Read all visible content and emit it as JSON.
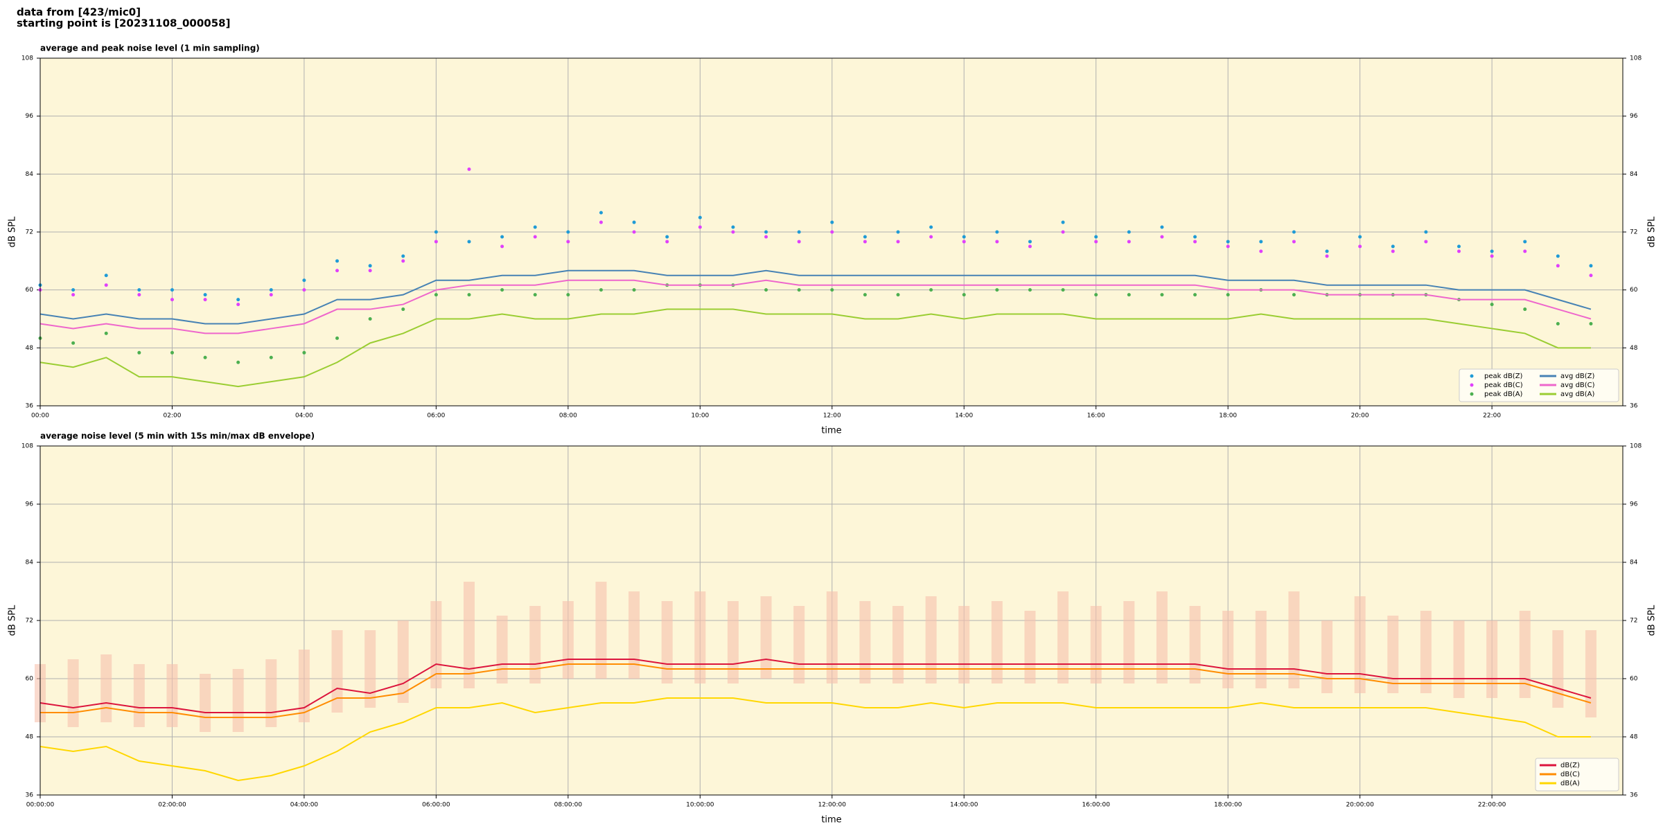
{
  "header": {
    "line1": "data from [423/mic0]",
    "line2": "starting point is [20231108_000058]"
  },
  "chart_data": [
    {
      "type": "line",
      "title": "average and peak noise level (1 min sampling)",
      "x_label": "time",
      "y_label": "dB SPL",
      "background": "#fdf6d8",
      "grid": true,
      "legend": "lower right",
      "legend_columns": 2,
      "x": [
        "00:00",
        "00:30",
        "01:00",
        "01:30",
        "02:00",
        "02:30",
        "03:00",
        "03:30",
        "04:00",
        "04:30",
        "05:00",
        "05:30",
        "06:00",
        "06:30",
        "07:00",
        "07:30",
        "08:00",
        "08:30",
        "09:00",
        "09:30",
        "10:00",
        "10:30",
        "11:00",
        "11:30",
        "12:00",
        "12:30",
        "13:00",
        "13:30",
        "14:00",
        "14:30",
        "15:00",
        "15:30",
        "16:00",
        "16:30",
        "17:00",
        "17:30",
        "18:00",
        "18:30",
        "19:00",
        "19:30",
        "20:00",
        "20:30",
        "21:00",
        "21:30",
        "22:00",
        "22:30",
        "23:00",
        "23:30"
      ],
      "xlim": [
        "00:00",
        "23:59"
      ],
      "xticks": [
        "00:00",
        "02:00",
        "04:00",
        "06:00",
        "08:00",
        "10:00",
        "12:00",
        "14:00",
        "16:00",
        "18:00",
        "20:00",
        "22:00"
      ],
      "ylim": [
        36,
        108
      ],
      "yticks": [
        36,
        48,
        60,
        72,
        84,
        96,
        108
      ],
      "series": [
        {
          "name": "peak dB(Z)",
          "type": "scatter",
          "color": "#1f9bd6",
          "values": [
            61,
            60,
            63,
            60,
            60,
            59,
            58,
            60,
            62,
            66,
            65,
            67,
            72,
            70,
            71,
            73,
            72,
            76,
            74,
            71,
            75,
            73,
            72,
            72,
            74,
            71,
            72,
            73,
            71,
            72,
            70,
            74,
            71,
            72,
            73,
            71,
            70,
            70,
            72,
            68,
            71,
            69,
            72,
            69,
            68,
            70,
            67,
            65
          ]
        },
        {
          "name": "peak dB(C)",
          "type": "scatter",
          "color": "#e040fb",
          "values": [
            60,
            59,
            61,
            59,
            58,
            58,
            57,
            59,
            60,
            64,
            64,
            66,
            70,
            85,
            69,
            71,
            70,
            74,
            72,
            70,
            73,
            72,
            71,
            70,
            72,
            70,
            70,
            71,
            70,
            70,
            69,
            72,
            70,
            70,
            71,
            70,
            69,
            68,
            70,
            67,
            69,
            68,
            70,
            68,
            67,
            68,
            65,
            63
          ]
        },
        {
          "name": "peak dB(A)",
          "type": "scatter",
          "color": "#4caf50",
          "values": [
            50,
            49,
            51,
            47,
            47,
            46,
            45,
            46,
            47,
            50,
            54,
            56,
            59,
            59,
            60,
            59,
            59,
            60,
            60,
            61,
            61,
            61,
            60,
            60,
            60,
            59,
            59,
            60,
            59,
            60,
            60,
            60,
            59,
            59,
            59,
            59,
            59,
            60,
            59,
            59,
            59,
            59,
            59,
            58,
            57,
            56,
            53,
            53
          ]
        },
        {
          "name": "avg dB(Z)",
          "type": "line",
          "color": "#4682b4",
          "values": [
            55,
            54,
            55,
            54,
            54,
            53,
            53,
            54,
            55,
            58,
            58,
            59,
            62,
            62,
            63,
            63,
            64,
            64,
            64,
            63,
            63,
            63,
            64,
            63,
            63,
            63,
            63,
            63,
            63,
            63,
            63,
            63,
            63,
            63,
            63,
            63,
            62,
            62,
            62,
            61,
            61,
            61,
            61,
            60,
            60,
            60,
            58,
            56
          ]
        },
        {
          "name": "avg dB(C)",
          "type": "line",
          "color": "#ee66cc",
          "values": [
            53,
            52,
            53,
            52,
            52,
            51,
            51,
            52,
            53,
            56,
            56,
            57,
            60,
            61,
            61,
            61,
            62,
            62,
            62,
            61,
            61,
            61,
            62,
            61,
            61,
            61,
            61,
            61,
            61,
            61,
            61,
            61,
            61,
            61,
            61,
            61,
            60,
            60,
            60,
            59,
            59,
            59,
            59,
            58,
            58,
            58,
            56,
            54
          ]
        },
        {
          "name": "avg dB(A)",
          "type": "line",
          "color": "#9acd32",
          "values": [
            45,
            44,
            46,
            42,
            42,
            41,
            40,
            41,
            42,
            45,
            49,
            51,
            54,
            54,
            55,
            54,
            54,
            55,
            55,
            56,
            56,
            56,
            55,
            55,
            55,
            54,
            54,
            55,
            54,
            55,
            55,
            55,
            54,
            54,
            54,
            54,
            54,
            55,
            54,
            54,
            54,
            54,
            54,
            53,
            52,
            51,
            48,
            48
          ]
        }
      ]
    },
    {
      "type": "line",
      "title": "average noise level (5 min with 15s min/max dB envelope)",
      "x_label": "time",
      "y_label": "dB SPL",
      "background": "#fdf6d8",
      "grid": true,
      "legend": "lower right",
      "legend_columns": 1,
      "x": [
        "00:00:00",
        "00:30:00",
        "01:00:00",
        "01:30:00",
        "02:00:00",
        "02:30:00",
        "03:00:00",
        "03:30:00",
        "04:00:00",
        "04:30:00",
        "05:00:00",
        "05:30:00",
        "06:00:00",
        "06:30:00",
        "07:00:00",
        "07:30:00",
        "08:00:00",
        "08:30:00",
        "09:00:00",
        "09:30:00",
        "10:00:00",
        "10:30:00",
        "11:00:00",
        "11:30:00",
        "12:00:00",
        "12:30:00",
        "13:00:00",
        "13:30:00",
        "14:00:00",
        "14:30:00",
        "15:00:00",
        "15:30:00",
        "16:00:00",
        "16:30:00",
        "17:00:00",
        "17:30:00",
        "18:00:00",
        "18:30:00",
        "19:00:00",
        "19:30:00",
        "20:00:00",
        "20:30:00",
        "21:00:00",
        "21:30:00",
        "22:00:00",
        "22:30:00",
        "23:00:00",
        "23:30:00"
      ],
      "xlim": [
        "00:00:00",
        "23:59:00"
      ],
      "xticks": [
        "00:00:00",
        "02:00:00",
        "04:00:00",
        "06:00:00",
        "08:00:00",
        "10:00:00",
        "12:00:00",
        "14:00:00",
        "16:00:00",
        "18:00:00",
        "20:00:00",
        "22:00:00"
      ],
      "ylim": [
        36,
        108
      ],
      "yticks": [
        36,
        48,
        60,
        72,
        84,
        96,
        108
      ],
      "envelope": {
        "color": "#f6c2ae",
        "min": [
          51,
          50,
          51,
          50,
          50,
          49,
          49,
          50,
          51,
          53,
          54,
          55,
          58,
          58,
          59,
          59,
          60,
          60,
          60,
          59,
          59,
          59,
          60,
          59,
          59,
          59,
          59,
          59,
          59,
          59,
          59,
          59,
          59,
          59,
          59,
          59,
          58,
          58,
          58,
          57,
          57,
          57,
          57,
          56,
          56,
          56,
          54,
          52
        ],
        "max": [
          63,
          64,
          65,
          63,
          63,
          61,
          62,
          64,
          66,
          70,
          70,
          72,
          76,
          80,
          73,
          75,
          76,
          80,
          78,
          76,
          78,
          76,
          77,
          75,
          78,
          76,
          75,
          77,
          75,
          76,
          74,
          78,
          75,
          76,
          78,
          75,
          74,
          74,
          78,
          72,
          77,
          73,
          74,
          72,
          72,
          74,
          70,
          70
        ]
      },
      "series": [
        {
          "name": "dB(Z)",
          "color": "#dc143c",
          "values": [
            55,
            54,
            55,
            54,
            54,
            53,
            53,
            53,
            54,
            58,
            57,
            59,
            63,
            62,
            63,
            63,
            64,
            64,
            64,
            63,
            63,
            63,
            64,
            63,
            63,
            63,
            63,
            63,
            63,
            63,
            63,
            63,
            63,
            63,
            63,
            63,
            62,
            62,
            62,
            61,
            61,
            60,
            60,
            60,
            60,
            60,
            58,
            56
          ]
        },
        {
          "name": "dB(C)",
          "color": "#ff8c00",
          "values": [
            53,
            53,
            54,
            53,
            53,
            52,
            52,
            52,
            53,
            56,
            56,
            57,
            61,
            61,
            62,
            62,
            63,
            63,
            63,
            62,
            62,
            62,
            62,
            62,
            62,
            62,
            62,
            62,
            62,
            62,
            62,
            62,
            62,
            62,
            62,
            62,
            61,
            61,
            61,
            60,
            60,
            59,
            59,
            59,
            59,
            59,
            57,
            55
          ]
        },
        {
          "name": "dB(A)",
          "color": "#ffd700",
          "values": [
            46,
            45,
            46,
            43,
            42,
            41,
            39,
            40,
            42,
            45,
            49,
            51,
            54,
            54,
            55,
            53,
            54,
            55,
            55,
            56,
            56,
            56,
            55,
            55,
            55,
            54,
            54,
            55,
            54,
            55,
            55,
            55,
            54,
            54,
            54,
            54,
            54,
            55,
            54,
            54,
            54,
            54,
            54,
            53,
            52,
            51,
            48,
            48
          ]
        }
      ]
    }
  ]
}
